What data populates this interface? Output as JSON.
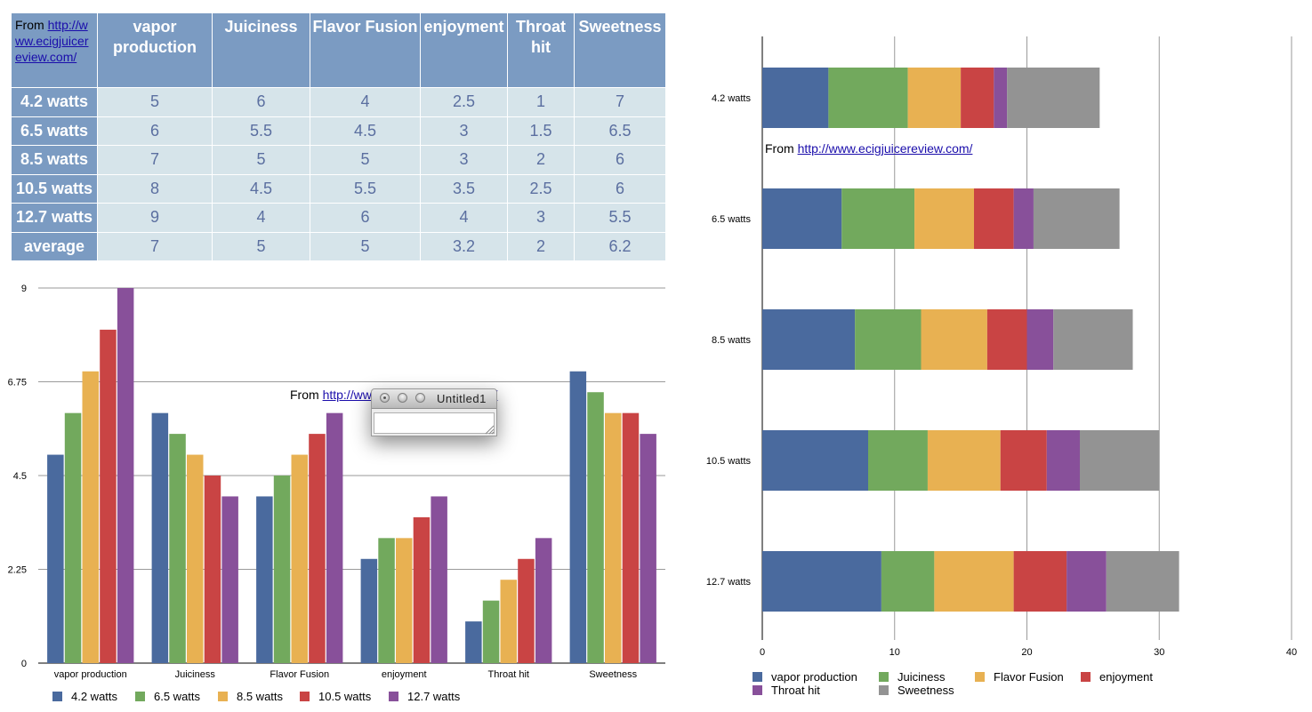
{
  "table": {
    "source_prefix": "From ",
    "source_link": "http://www.ecigjuicereview.com/",
    "columns": [
      "vapor production",
      "Juiciness",
      "Flavor Fusion",
      "enjoyment",
      "Throat hit",
      "Sweetness"
    ],
    "rows": [
      {
        "label": "4.2 watts",
        "values": [
          "5",
          "6",
          "4",
          "2.5",
          "1",
          "7"
        ]
      },
      {
        "label": "6.5 watts",
        "values": [
          "6",
          "5.5",
          "4.5",
          "3",
          "1.5",
          "6.5"
        ]
      },
      {
        "label": "8.5 watts",
        "values": [
          "7",
          "5",
          "5",
          "3",
          "2",
          "6"
        ]
      },
      {
        "label": "10.5 watts",
        "values": [
          "8",
          "4.5",
          "5.5",
          "3.5",
          "2.5",
          "6"
        ]
      },
      {
        "label": "12.7 watts",
        "values": [
          "9",
          "4",
          "6",
          "4",
          "3",
          "5.5"
        ]
      },
      {
        "label": "average",
        "values": [
          "7",
          "5",
          "5",
          "3.2",
          "2",
          "6.2"
        ]
      }
    ]
  },
  "bar_note": {
    "prefix": "From ",
    "link": "http://www.ecigjuicereview.com/"
  },
  "stack_note": {
    "prefix": "From ",
    "link": "http://www.ecigjuicereview.com/"
  },
  "window": {
    "title": "Untitled1"
  },
  "chart_data": [
    {
      "type": "bar",
      "categories": [
        "vapor production",
        "Juiciness",
        "Flavor Fusion",
        "enjoyment",
        "Throat hit",
        "Sweetness"
      ],
      "series": [
        {
          "name": "4.2 watts",
          "color": "#4a6a9e",
          "values": [
            5,
            6,
            4,
            2.5,
            1,
            7
          ]
        },
        {
          "name": "6.5 watts",
          "color": "#72a95d",
          "values": [
            6,
            5.5,
            4.5,
            3,
            1.5,
            6.5
          ]
        },
        {
          "name": "8.5 watts",
          "color": "#e8b152",
          "values": [
            7,
            5,
            5,
            3,
            2,
            6
          ]
        },
        {
          "name": "10.5 watts",
          "color": "#c94444",
          "values": [
            8,
            4.5,
            5.5,
            3.5,
            2.5,
            6
          ]
        },
        {
          "name": "12.7 watts",
          "color": "#88509a",
          "values": [
            9,
            4,
            6,
            4,
            3,
            5.5
          ]
        }
      ],
      "yticks": [
        "0",
        "2.25",
        "4.5",
        "6.75",
        "9"
      ],
      "ylim": [
        0,
        9
      ],
      "grid": true,
      "legend": "bottom"
    },
    {
      "type": "bar",
      "orientation": "horizontal",
      "stacked": true,
      "categories": [
        "4.2 watts",
        "6.5 watts",
        "8.5 watts",
        "10.5 watts",
        "12.7 watts"
      ],
      "series": [
        {
          "name": "vapor production",
          "color": "#4a6a9e",
          "values": [
            5,
            6,
            7,
            8,
            9
          ]
        },
        {
          "name": "Juiciness",
          "color": "#72a95d",
          "values": [
            6,
            5.5,
            5,
            4.5,
            4
          ]
        },
        {
          "name": "Flavor Fusion",
          "color": "#e8b152",
          "values": [
            4,
            4.5,
            5,
            5.5,
            6
          ]
        },
        {
          "name": "enjoyment",
          "color": "#c94444",
          "values": [
            2.5,
            3,
            3,
            3.5,
            4
          ]
        },
        {
          "name": "Throat hit",
          "color": "#88509a",
          "values": [
            1,
            1.5,
            2,
            2.5,
            3
          ]
        },
        {
          "name": "Sweetness",
          "color": "#939393",
          "values": [
            7,
            6.5,
            6,
            6,
            5.5
          ]
        }
      ],
      "xticks": [
        "0",
        "10",
        "20",
        "30",
        "40"
      ],
      "xlim": [
        0,
        40
      ],
      "grid": true,
      "legend": "bottom"
    }
  ]
}
